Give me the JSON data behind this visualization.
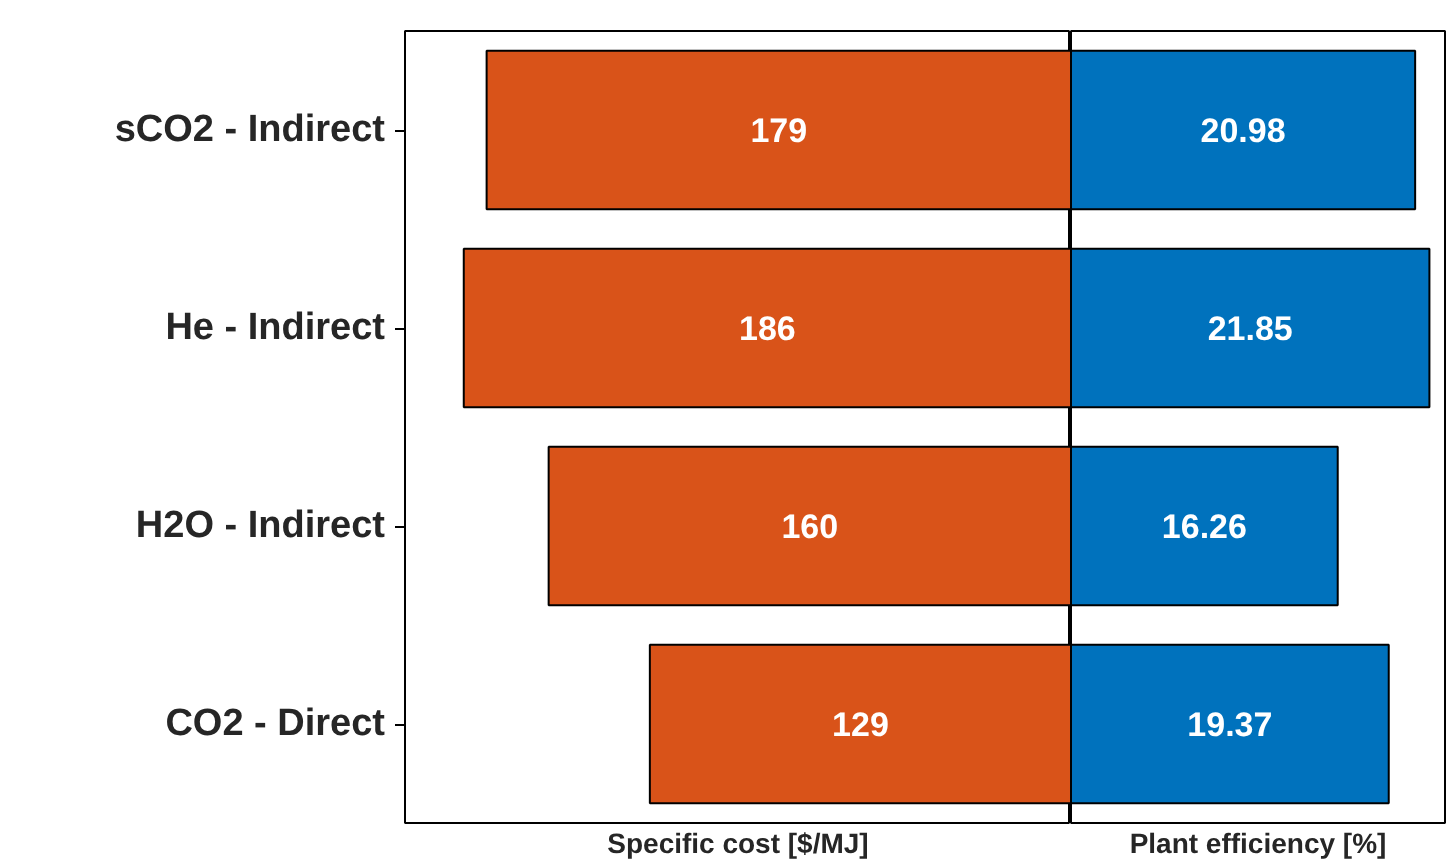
{
  "chart_data": [
    {
      "type": "bar",
      "orientation": "horizontal",
      "categories": [
        "sCO2 - Indirect",
        "He - Indirect",
        "H2O - Indirect",
        "CO2 - Direct"
      ],
      "xlabel": "Specific cost [$/MJ]",
      "color": "#d95319",
      "values": [
        179,
        186,
        160,
        129
      ],
      "xlim": [
        204,
        0
      ],
      "data_labels": true,
      "tick_labels": "y",
      "grid": false
    },
    {
      "type": "bar",
      "orientation": "horizontal",
      "categories": [
        null,
        null,
        null,
        null
      ],
      "xlabel": "Plant efficiency [%]",
      "color": "#0072bd",
      "values": [
        20.98,
        21.85,
        16.26,
        19.37
      ],
      "xlim": [
        0,
        22.8
      ],
      "data_labels": true,
      "tick_labels": false,
      "grid": false
    }
  ]
}
